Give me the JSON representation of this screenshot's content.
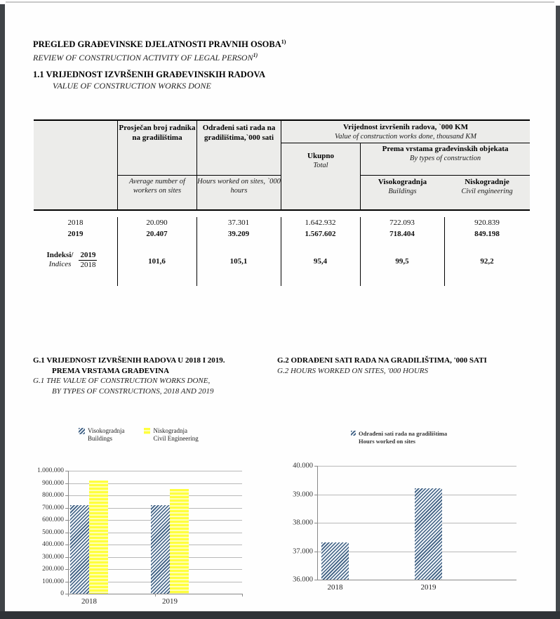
{
  "page": {
    "title_bs": "PREGLED GRAĐEVINSKE DJELATNOSTI PRAVNIH OSOBA",
    "title_sup": "1)",
    "title_en": "REVIEW OF CONSTRUCTION ACTIVITY OF LEGAL PERSON",
    "title_en_sup": "1)",
    "section_bs": "1.1 VRIJEDNOST IZVRŠENIH GRAĐEVINSKIH RADOVA",
    "section_en": "VALUE OF CONSTRUCTION WORKS DONE"
  },
  "table": {
    "col_workers_bs": "Prosječan broj radnika na gradilištima",
    "col_workers_en": "Average number of workers on sites",
    "col_hours_bs": "Odrađeni sati rada na gradilištima,`000 sati",
    "col_hours_en": "Hours worked on sites, `000 hours",
    "group_value_bs": "Vrijednost izvršenih radova, `000 KM",
    "group_value_en": "Value of construction works done, thousand KM",
    "col_total_bs": "Ukupno",
    "col_total_en": "Total",
    "group_types_bs": "Prema vrstama građevinskih objekata",
    "group_types_en": "By types of construction",
    "col_buildings_bs": "Visokogradnja",
    "col_buildings_en": "Buildings",
    "col_civil_bs": "Niskogradnje",
    "col_civil_en": "Civil engineering",
    "rows": [
      {
        "label": "2018",
        "workers": "20.090",
        "hours": "37.301",
        "total": "1.642.932",
        "buildings": "722.093",
        "civil": "920.839"
      },
      {
        "label": "2019",
        "workers": "20.407",
        "hours": "39.209",
        "total": "1.567.602",
        "buildings": "718.404",
        "civil": "849.198"
      }
    ],
    "index_row": {
      "label_bs": "Indeksi/",
      "label_en": "Indices",
      "numerator": "2019",
      "denominator": "2018",
      "workers": "101,6",
      "hours": "105,1",
      "total": "95,4",
      "buildings": "99,5",
      "civil": "92,2"
    }
  },
  "chart_data": [
    {
      "type": "bar",
      "title_lines_bs": [
        "G.1 VRIJEDNOST IZVRŠENIH RADOVA U 2018 I 2019.",
        "PREMA VRSTAMA GRAĐEVINA"
      ],
      "title_lines_en": [
        "G.1 THE VALUE OF CONSTRUCTION WORKS DONE,",
        "BY TYPES OF CONSTRUCTIONS, 2018 AND 2019"
      ],
      "categories": [
        "2018",
        "2019"
      ],
      "series": [
        {
          "name_bs": "Visokogradnja",
          "name_en": "Buildings",
          "style": "hatch",
          "values": [
            722093,
            718404
          ]
        },
        {
          "name_bs": "Niskogradnja",
          "name_en": "Civil Engineering",
          "style": "yellow",
          "values": [
            920839,
            849198
          ]
        }
      ],
      "ylim": [
        0,
        1000000
      ],
      "ytick_step": 100000,
      "ytick_labels": [
        "1.000.000",
        "900.000",
        "800.000",
        "700.000",
        "600.000",
        "500.000",
        "400.000",
        "300.000",
        "200.000",
        "100.000",
        "0"
      ],
      "xlabel": "",
      "ylabel": "",
      "grid": true,
      "legend_position": "top"
    },
    {
      "type": "bar",
      "title_bs": "G.2 ODRAĐENI SATI RADA NA GRADILIŠTIMA, '000 SATI",
      "title_en": "G.2 HOURS WORKED ON SITES, '000 HOURS",
      "categories": [
        "2018",
        "2019"
      ],
      "series": [
        {
          "name_bs": "Odrađeni sati rada na gradilištima",
          "name_en": "Hours worked on sites",
          "style": "hatch",
          "values": [
            37301,
            39209
          ]
        }
      ],
      "ylim": [
        36000,
        40000
      ],
      "ytick_step": 1000,
      "ytick_labels": [
        "40.000",
        "39.000",
        "38.000",
        "37.000",
        "36.000"
      ],
      "xlabel": "",
      "ylabel": "",
      "grid": true,
      "legend_position": "top"
    }
  ],
  "colors": {
    "hatch_blue": "#3c5d80",
    "bar_yellow": "#ffff3e",
    "table_header_bg": "#ececea",
    "gridline": "#b8b8b8"
  }
}
